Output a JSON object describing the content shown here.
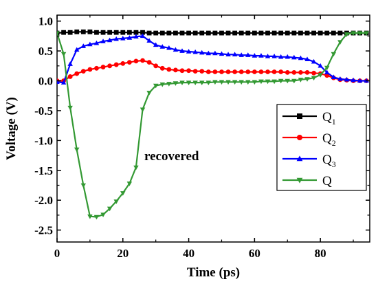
{
  "chart_data": {
    "type": "line",
    "xlabel": "Time (ps)",
    "ylabel": "Voltage (V)",
    "xlim": [
      0,
      95
    ],
    "ylim": [
      -2.7,
      1.1
    ],
    "xticks": [
      "0",
      "20",
      "40",
      "60",
      "80"
    ],
    "yticks": [
      "1.0",
      "0.5",
      "0.0",
      "-0.5",
      "-1.0",
      "-1.5",
      "-2.0",
      "-2.5"
    ],
    "annotation": "recovered",
    "legend_position": "right",
    "series": [
      {
        "name": "Q1",
        "name_main": "Q",
        "name_sub": "1",
        "color": "#000000",
        "marker": "square",
        "x": [
          0,
          2,
          4,
          6,
          8,
          10,
          12,
          14,
          16,
          18,
          20,
          22,
          24,
          26,
          28,
          30,
          32,
          34,
          36,
          38,
          40,
          42,
          44,
          46,
          48,
          50,
          52,
          54,
          56,
          58,
          60,
          62,
          64,
          66,
          68,
          70,
          72,
          74,
          76,
          78,
          80,
          82,
          84,
          86,
          88,
          90,
          92,
          94
        ],
        "y": [
          0.8,
          0.81,
          0.81,
          0.82,
          0.82,
          0.82,
          0.81,
          0.81,
          0.81,
          0.81,
          0.81,
          0.81,
          0.81,
          0.81,
          0.8,
          0.8,
          0.8,
          0.8,
          0.8,
          0.8,
          0.8,
          0.8,
          0.8,
          0.8,
          0.8,
          0.8,
          0.8,
          0.8,
          0.8,
          0.8,
          0.8,
          0.8,
          0.8,
          0.8,
          0.8,
          0.8,
          0.8,
          0.8,
          0.8,
          0.8,
          0.8,
          0.8,
          0.8,
          0.8,
          0.8,
          0.8,
          0.8,
          0.8
        ]
      },
      {
        "name": "Q2",
        "name_main": "Q",
        "name_sub": "2",
        "color": "#ff0000",
        "marker": "circle",
        "x": [
          0,
          2,
          4,
          6,
          8,
          10,
          12,
          14,
          16,
          18,
          20,
          22,
          24,
          26,
          28,
          30,
          32,
          34,
          36,
          38,
          40,
          42,
          44,
          46,
          48,
          50,
          52,
          54,
          56,
          58,
          60,
          62,
          64,
          66,
          68,
          70,
          72,
          74,
          76,
          78,
          80,
          82,
          84,
          86,
          88,
          90,
          92,
          94
        ],
        "y": [
          0.0,
          0.0,
          0.07,
          0.12,
          0.16,
          0.19,
          0.21,
          0.23,
          0.25,
          0.27,
          0.29,
          0.31,
          0.33,
          0.34,
          0.31,
          0.25,
          0.21,
          0.19,
          0.18,
          0.17,
          0.17,
          0.16,
          0.16,
          0.15,
          0.15,
          0.15,
          0.15,
          0.15,
          0.15,
          0.15,
          0.15,
          0.15,
          0.15,
          0.15,
          0.15,
          0.14,
          0.14,
          0.14,
          0.14,
          0.13,
          0.12,
          0.09,
          0.05,
          0.02,
          0.01,
          0.0,
          0.0,
          0.0
        ]
      },
      {
        "name": "Q3",
        "name_main": "Q",
        "name_sub": "3",
        "color": "#0000ff",
        "marker": "triangle",
        "x": [
          0,
          2,
          4,
          6,
          8,
          10,
          12,
          14,
          16,
          18,
          20,
          22,
          24,
          26,
          28,
          30,
          32,
          34,
          36,
          38,
          40,
          42,
          44,
          46,
          48,
          50,
          52,
          54,
          56,
          58,
          60,
          62,
          64,
          66,
          68,
          70,
          72,
          74,
          76,
          78,
          80,
          82,
          84,
          86,
          88,
          90,
          92,
          94
        ],
        "y": [
          -0.02,
          -0.03,
          0.28,
          0.52,
          0.58,
          0.61,
          0.63,
          0.66,
          0.68,
          0.7,
          0.71,
          0.72,
          0.74,
          0.75,
          0.67,
          0.6,
          0.57,
          0.55,
          0.52,
          0.5,
          0.49,
          0.48,
          0.47,
          0.46,
          0.46,
          0.45,
          0.44,
          0.44,
          0.43,
          0.43,
          0.42,
          0.42,
          0.41,
          0.41,
          0.4,
          0.4,
          0.39,
          0.38,
          0.36,
          0.32,
          0.25,
          0.14,
          0.06,
          0.03,
          0.02,
          0.01,
          0.0,
          0.0
        ]
      },
      {
        "name": "Q",
        "name_main": "Q",
        "name_sub": "",
        "color": "#339933",
        "marker": "triangle-down",
        "x": [
          0,
          2,
          4,
          6,
          8,
          10,
          12,
          14,
          16,
          18,
          20,
          22,
          24,
          26,
          28,
          30,
          32,
          34,
          36,
          38,
          40,
          42,
          44,
          46,
          48,
          50,
          52,
          54,
          56,
          58,
          60,
          62,
          64,
          66,
          68,
          70,
          72,
          74,
          76,
          78,
          80,
          82,
          84,
          86,
          88,
          90,
          92,
          94
        ],
        "y": [
          0.8,
          0.45,
          -0.45,
          -1.15,
          -1.75,
          -2.27,
          -2.28,
          -2.24,
          -2.14,
          -2.02,
          -1.88,
          -1.72,
          -1.45,
          -0.48,
          -0.2,
          -0.08,
          -0.06,
          -0.05,
          -0.04,
          -0.03,
          -0.03,
          -0.03,
          -0.03,
          -0.03,
          -0.02,
          -0.02,
          -0.02,
          -0.02,
          -0.02,
          -0.02,
          -0.02,
          -0.01,
          -0.01,
          -0.01,
          0.0,
          0.0,
          0.0,
          0.02,
          0.03,
          0.05,
          0.1,
          0.22,
          0.45,
          0.65,
          0.78,
          0.8,
          0.8,
          0.8
        ]
      }
    ]
  }
}
